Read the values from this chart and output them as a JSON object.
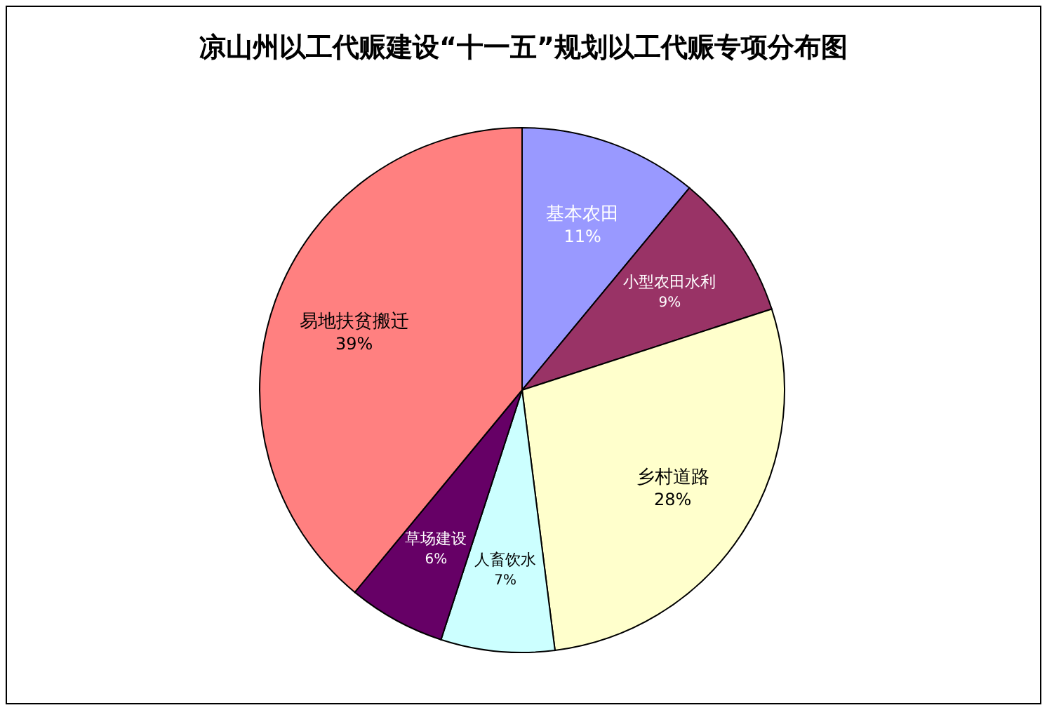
{
  "chart_data": {
    "type": "pie",
    "title": "凉山州以工代赈建设“十一五”规划以工代赈专项分布图",
    "categories": [
      "基本农田",
      "小型农田水利",
      "乡村道路",
      "人畜饮水",
      "草场建设",
      "易地扶贫搬迁"
    ],
    "values": [
      11,
      9,
      28,
      7,
      6,
      39
    ],
    "value_labels": [
      "11%",
      "9%",
      "28%",
      "7%",
      "6%",
      "39%"
    ],
    "colors": [
      "#9999ff",
      "#993366",
      "#ffffcc",
      "#ccffff",
      "#660066",
      "#ff8080"
    ]
  }
}
